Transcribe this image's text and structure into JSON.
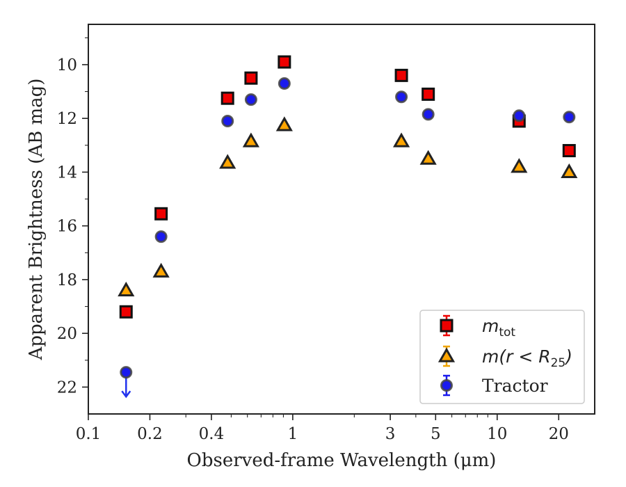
{
  "chart_data": {
    "type": "scatter",
    "xlabel": "Observed-frame Wavelength (μm)",
    "ylabel": "Apparent Brightness (AB mag)",
    "xscale": "log",
    "xlim": [
      0.1,
      30
    ],
    "ylim": [
      23,
      8.5
    ],
    "y_inverted": true,
    "grid": false,
    "x_ticks": [
      0.1,
      0.2,
      0.4,
      1,
      3,
      5,
      10,
      20
    ],
    "x_tick_labels": [
      "0.1",
      "0.2",
      "0.4",
      "1",
      "3",
      "5",
      "10",
      "20"
    ],
    "y_ticks": [
      10,
      12,
      14,
      16,
      18,
      20,
      22
    ],
    "y_tick_labels": [
      "10",
      "12",
      "14",
      "16",
      "18",
      "20",
      "22"
    ],
    "legend": {
      "position": "lower right"
    },
    "series": [
      {
        "name": "m_tot",
        "legend_main": "m",
        "legend_sub": "tot",
        "marker": "square",
        "color": "#ee0000",
        "edge": "#111111",
        "x": [
          0.153,
          0.227,
          0.48,
          0.625,
          0.91,
          3.4,
          4.6,
          12.8,
          22.5
        ],
        "y": [
          19.2,
          15.55,
          11.25,
          10.5,
          9.9,
          10.4,
          11.1,
          12.1,
          13.2
        ]
      },
      {
        "name": "m(r < R25)",
        "legend_main": "m(r < R",
        "legend_sub": "25",
        "legend_tail": ")",
        "marker": "triangle",
        "color": "#ffa500",
        "edge": "#222222",
        "x": [
          0.153,
          0.227,
          0.48,
          0.625,
          0.91,
          3.4,
          4.6,
          12.8,
          22.5
        ],
        "y": [
          18.4,
          17.7,
          13.65,
          12.85,
          12.25,
          12.85,
          13.5,
          13.8,
          14.0
        ]
      },
      {
        "name": "Tractor",
        "marker": "circle",
        "color": "#1a1aee",
        "edge": "#444444",
        "x": [
          0.153,
          0.227,
          0.48,
          0.625,
          0.91,
          3.4,
          4.6,
          12.8,
          22.5
        ],
        "y": [
          21.45,
          16.4,
          12.1,
          11.3,
          10.7,
          11.2,
          11.85,
          11.9,
          11.95
        ],
        "upper_limit_indices": [
          0
        ]
      }
    ]
  }
}
